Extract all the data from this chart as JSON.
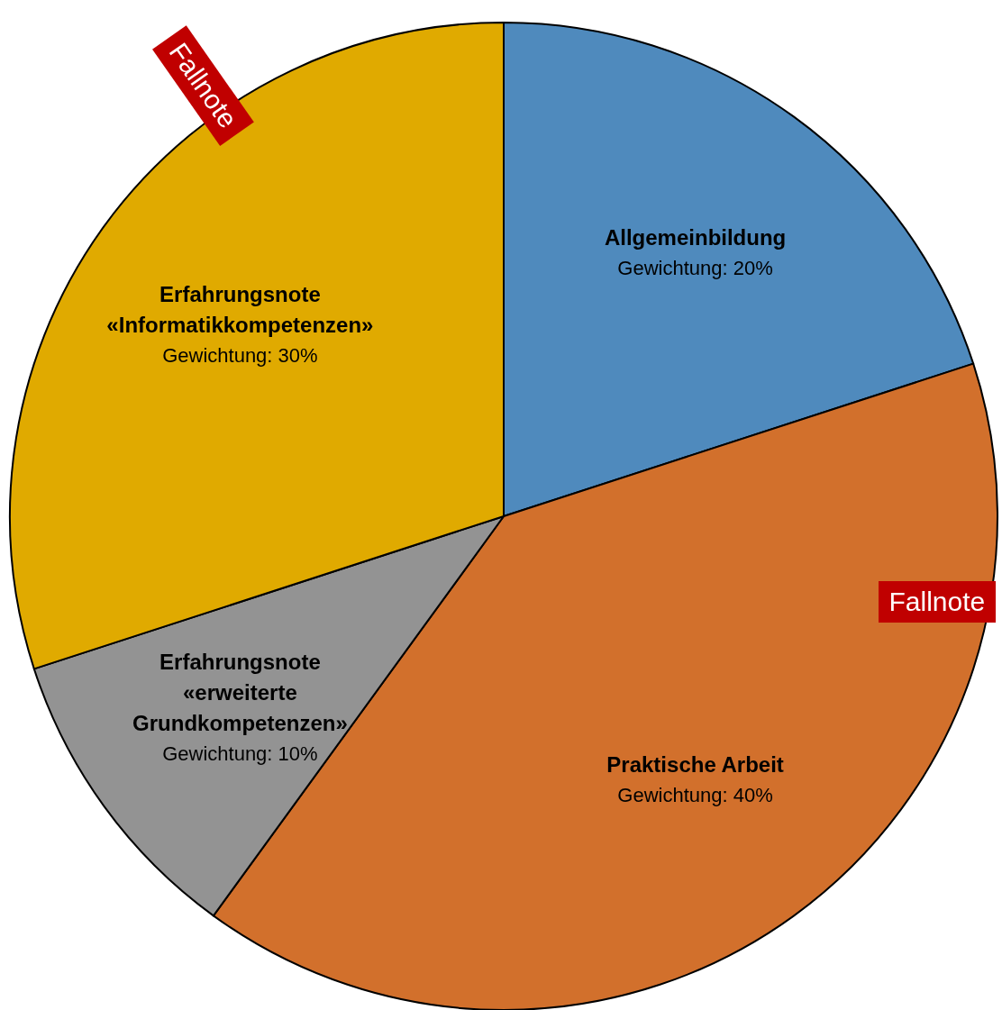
{
  "chart_data": {
    "type": "pie",
    "categories": [
      "Allgemeinbildung",
      "Praktische Arbeit",
      "Erfahrungsnote «erweiterte Grundkompetenzen»",
      "Erfahrungsnote «Informatikkompetenzen»"
    ],
    "values": [
      20,
      40,
      10,
      30
    ],
    "value_labels": [
      "Gewichtung: 20%",
      "Gewichtung: 40%",
      "Gewichtung: 10%",
      "Gewichtung: 30%"
    ],
    "colors": [
      "#4f8abd",
      "#d2702c",
      "#939393",
      "#e0aa00"
    ],
    "annotations": [
      "Fallnote",
      "Fallnote"
    ],
    "legend": false
  }
}
